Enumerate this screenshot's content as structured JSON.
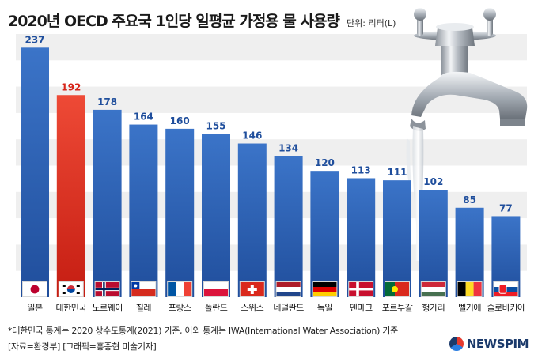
{
  "title": "2020년 OECD 주요국 1인당 일평균 가정용 물 사용량",
  "unit": "단위: 리터(L)",
  "footnote": "*대한민국 통계는 2020 상수도통계(2021) 기준, 이외 통계는 IWA(International Water Association) 기준",
  "source": "[자료=환경부] [그래픽=홍종현 미술기자]",
  "logo": "NEWSPIM",
  "colors": {
    "bar": "#2f64b8",
    "highlight": "#e23b2b",
    "value": "#1f4e9c",
    "highlight_value": "#d7261b"
  },
  "chart_data": {
    "type": "bar",
    "categories": [
      "일본",
      "대한민국",
      "노르웨이",
      "칠레",
      "프랑스",
      "폴란드",
      "스위스",
      "네덜란드",
      "독일",
      "덴마크",
      "포르투갈",
      "헝가리",
      "벨기에",
      "슬로바키아"
    ],
    "values": [
      237,
      192,
      178,
      164,
      160,
      155,
      146,
      134,
      120,
      113,
      111,
      102,
      85,
      77
    ],
    "highlight_index": 1,
    "ylim": [
      0,
      250
    ],
    "grid": true
  }
}
